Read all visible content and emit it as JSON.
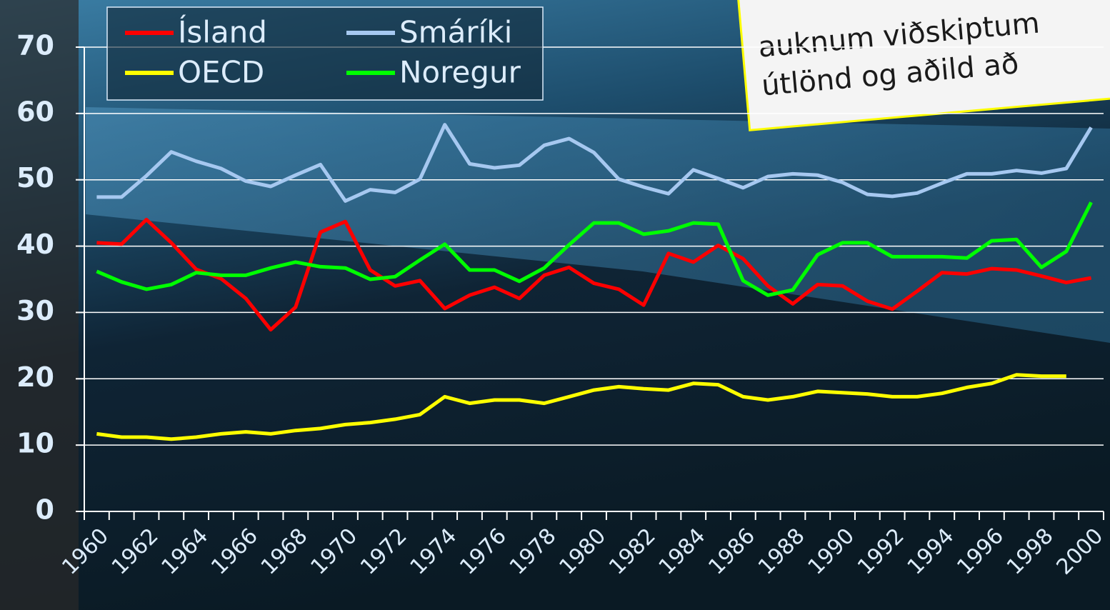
{
  "chart_data": {
    "type": "line",
    "categories": [
      "1960",
      null,
      "1962",
      null,
      "1964",
      null,
      "1966",
      null,
      "1968",
      null,
      "1970",
      null,
      "1972",
      null,
      "1974",
      null,
      "1976",
      null,
      "1978",
      null,
      "1980",
      null,
      "1982",
      null,
      "1984",
      null,
      "1986",
      null,
      "1988",
      null,
      "1990",
      null,
      "1992",
      null,
      "1994",
      null,
      "1996",
      null,
      "1998",
      null,
      "2000"
    ],
    "series": [
      {
        "name": "Ísland",
        "color": "#ff0000",
        "values": [
          40.5,
          40.3,
          44,
          40.5,
          36.5,
          35.1,
          32.1,
          27.4,
          30.8,
          42.1,
          43.7,
          36.4,
          34,
          34.8,
          30.6,
          32.6,
          33.8,
          32.1,
          35.6,
          36.8,
          34.4,
          33.5,
          31.1,
          38.9,
          37.6,
          40.1,
          38.1,
          34,
          31.3,
          34.2,
          34,
          31.7,
          30.5,
          33.2,
          36,
          35.8,
          36.6,
          36.4,
          35.5,
          34.5,
          35.2
        ]
      },
      {
        "name": "OECD",
        "color": "#ffff00",
        "values": [
          11.7,
          11.2,
          11.2,
          10.9,
          11.2,
          11.7,
          12,
          11.7,
          12.2,
          12.5,
          13.1,
          13.4,
          13.9,
          14.6,
          17.3,
          16.3,
          16.8,
          16.8,
          16.3,
          17.3,
          18.3,
          18.8,
          18.5,
          18.3,
          19.3,
          19.1,
          17.3,
          16.8,
          17.3,
          18.1,
          17.9,
          17.7,
          17.3,
          17.3,
          17.8,
          18.7,
          19.3,
          20.6,
          20.4,
          20.4,
          null
        ]
      },
      {
        "name": "Smáríki",
        "color": "#a6c8f0",
        "values": [
          47.4,
          47.4,
          50.6,
          54.2,
          52.8,
          51.7,
          49.8,
          49,
          50.7,
          52.3,
          46.8,
          48.5,
          48.1,
          50.1,
          58.3,
          52.4,
          51.8,
          52.2,
          55.2,
          56.2,
          54.1,
          50.1,
          48.9,
          47.9,
          51.5,
          50.2,
          48.8,
          50.5,
          50.9,
          50.7,
          49.6,
          47.8,
          47.5,
          48,
          49.5,
          50.9,
          50.9,
          51.4,
          51,
          51.7,
          57.9
        ]
      },
      {
        "name": "Noregur",
        "color": "#00ff00",
        "values": [
          36.2,
          34.6,
          33.5,
          34.2,
          36,
          35.6,
          35.6,
          36.7,
          37.6,
          36.9,
          36.7,
          35,
          35.4,
          37.9,
          40.3,
          36.4,
          36.4,
          34.7,
          36.7,
          40.2,
          43.5,
          43.5,
          41.8,
          42.3,
          43.5,
          43.3,
          34.8,
          32.6,
          33.4,
          38.7,
          40.5,
          40.5,
          38.4,
          38.4,
          38.4,
          38.2,
          40.8,
          41,
          36.8,
          39.2,
          46.6
        ]
      }
    ],
    "ylim": [
      0,
      70
    ],
    "yticks": [
      0,
      10,
      20,
      30,
      40,
      50,
      60,
      70
    ],
    "grid": true,
    "legend": "top-left",
    "annotation": [
      "auknum viðskiptum",
      "útlönd og aðild að"
    ]
  }
}
